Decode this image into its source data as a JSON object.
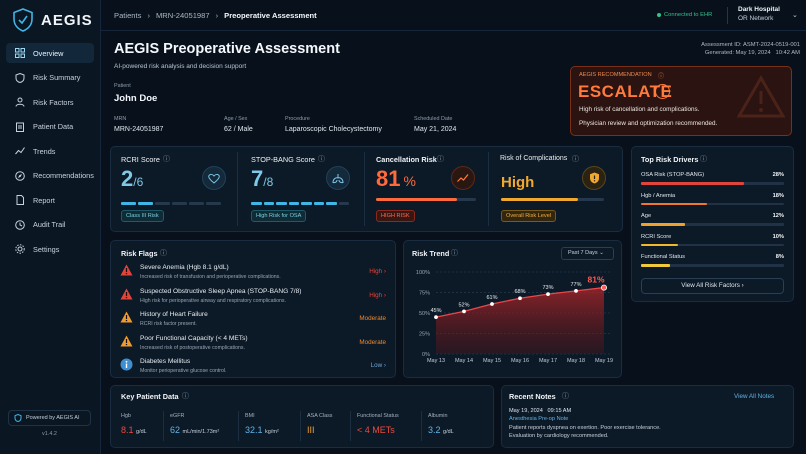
{
  "app": {
    "name": "AEGIS",
    "version": "v1.4.2",
    "powered": "Powered by AEGIS AI"
  },
  "nav": [
    "Overview",
    "Risk Summary",
    "Risk Factors",
    "Patient Data",
    "Trends",
    "Recommendations",
    "Report",
    "Audit Trail",
    "Settings"
  ],
  "breadcrumb": {
    "a": "Patients",
    "b": "MRN-24051987",
    "c": "Preoperative Assessment"
  },
  "status": {
    "ehr": "Connected to EHR",
    "hospital": "Dark Hospital",
    "unit": "OR Network"
  },
  "header": {
    "title": "AEGIS Preoperative Assessment",
    "subtitle": "AI-powered risk analysis and decision support",
    "assessment_id": "Assessment ID: ASMT-2024-0519-001",
    "generated": "Generated: May 19, 2024   10:42 AM"
  },
  "patient": {
    "label": "Patient",
    "name": "John Doe",
    "mrn_l": "MRN",
    "mrn": "MRN-24051987",
    "age_l": "Age / Sex",
    "age": "62 / Male",
    "proc_l": "Procedure",
    "proc": "Laparoscopic Cholecystectomy",
    "date_l": "Scheduled Date",
    "date": "May 21, 2024"
  },
  "recommendation": {
    "label": "AEGIS RECOMMENDATION",
    "action": "ESCALATE",
    "line1": "High risk of cancellation and complications.",
    "line2": "Physician review and optimization recommended."
  },
  "scores": {
    "rcri": {
      "title": "RCRI Score",
      "value": "2",
      "denom": "/6",
      "badge": "Class III Risk"
    },
    "stopbang": {
      "title": "STOP-BANG Score",
      "value": "7",
      "denom": "/8",
      "badge": "High Risk for OSA"
    },
    "cancel": {
      "title": "Cancellation Risk",
      "value": "81",
      "unit": "%",
      "badge": "HIGH RISK",
      "level": 0.81
    },
    "comp": {
      "title": "Risk of Complications",
      "value": "High",
      "badge": "Overall Risk Level",
      "level": 0.75
    }
  },
  "drivers": {
    "title": "Top Risk Drivers",
    "button": "View All Risk Factors",
    "items": [
      {
        "name": "OSA Risk (STOP-BANG)",
        "pct": "28%",
        "color": "#e0443a"
      },
      {
        "name": "Hgb / Anemia",
        "pct": "18%",
        "color": "#f0782c"
      },
      {
        "name": "Age",
        "pct": "12%",
        "color": "#f0a02c"
      },
      {
        "name": "RCRI Score",
        "pct": "10%",
        "color": "#f0b82c"
      },
      {
        "name": "Functional Status",
        "pct": "8%",
        "color": "#f0c83c"
      }
    ]
  },
  "flags": {
    "title": "Risk Flags",
    "items": [
      {
        "t": "Severe Anemia (Hgb 8.1 g/dL)",
        "d": "Increased risk of transfusion and perioperative complications.",
        "l": "High",
        "c": "#e8453c",
        "ic": "#e0443a"
      },
      {
        "t": "Suspected Obstructive Sleep Apnea (STOP-BANG 7/8)",
        "d": "High risk for perioperative airway and respiratory complications.",
        "l": "High",
        "c": "#e8453c",
        "ic": "#e0443a"
      },
      {
        "t": "History of Heart Failure",
        "d": "RCRI risk factor present.",
        "l": "Moderate",
        "c": "#ee8a2c",
        "ic": "#ee9a2c"
      },
      {
        "t": "Poor Functional Capacity (< 4 METs)",
        "d": "Increased risk of postoperative complications.",
        "l": "Moderate",
        "c": "#ee8a2c",
        "ic": "#ee9a2c"
      },
      {
        "t": "Diabetes Mellitus",
        "d": "Monitor perioperative glucose control.",
        "l": "Low",
        "c": "#6fa8d8",
        "ic": "#3f8fd0"
      }
    ]
  },
  "trend": {
    "title": "Risk Trend",
    "range": "Past 7 Days"
  },
  "chart_data": {
    "type": "line",
    "categories": [
      "May 13",
      "May 14",
      "May 15",
      "May 16",
      "May 17",
      "May 18",
      "May 19"
    ],
    "values": [
      45,
      52,
      61,
      68,
      73,
      77,
      81
    ],
    "labels": [
      "45%",
      "52%",
      "61%",
      "68%",
      "73%",
      "77%",
      "81%"
    ],
    "yticks": [
      "100%",
      "75%",
      "50%",
      "25%",
      "0%"
    ],
    "ylim": [
      0,
      100
    ]
  },
  "keydata": {
    "title": "Key Patient Data",
    "items": [
      {
        "k": "Hgb",
        "v": "8.1",
        "u": "g/dL",
        "c": "#ec4b3f"
      },
      {
        "k": "eGFR",
        "v": "62",
        "u": "mL/min/1.73m²",
        "c": "#5fb4e8"
      },
      {
        "k": "BMI",
        "v": "32.1",
        "u": "kg/m²",
        "c": "#5fb4e8"
      },
      {
        "k": "ASA Class",
        "v": "III",
        "u": "",
        "c": "#f0a030"
      },
      {
        "k": "Functional Status",
        "v": "< 4 METs",
        "u": "",
        "c": "#ec4b3f"
      },
      {
        "k": "Albumin",
        "v": "3.2",
        "u": "g/dL",
        "c": "#5fb4e8"
      }
    ]
  },
  "notes": {
    "title": "Recent Notes",
    "link": "View All Notes",
    "date": "May 19, 2024   09:15 AM",
    "type": "Anesthesia Pre-op Note",
    "l1": "Patient reports dyspnea on exertion. Poor exercise tolerance.",
    "l2": "Evaluation by cardiology recommended."
  }
}
